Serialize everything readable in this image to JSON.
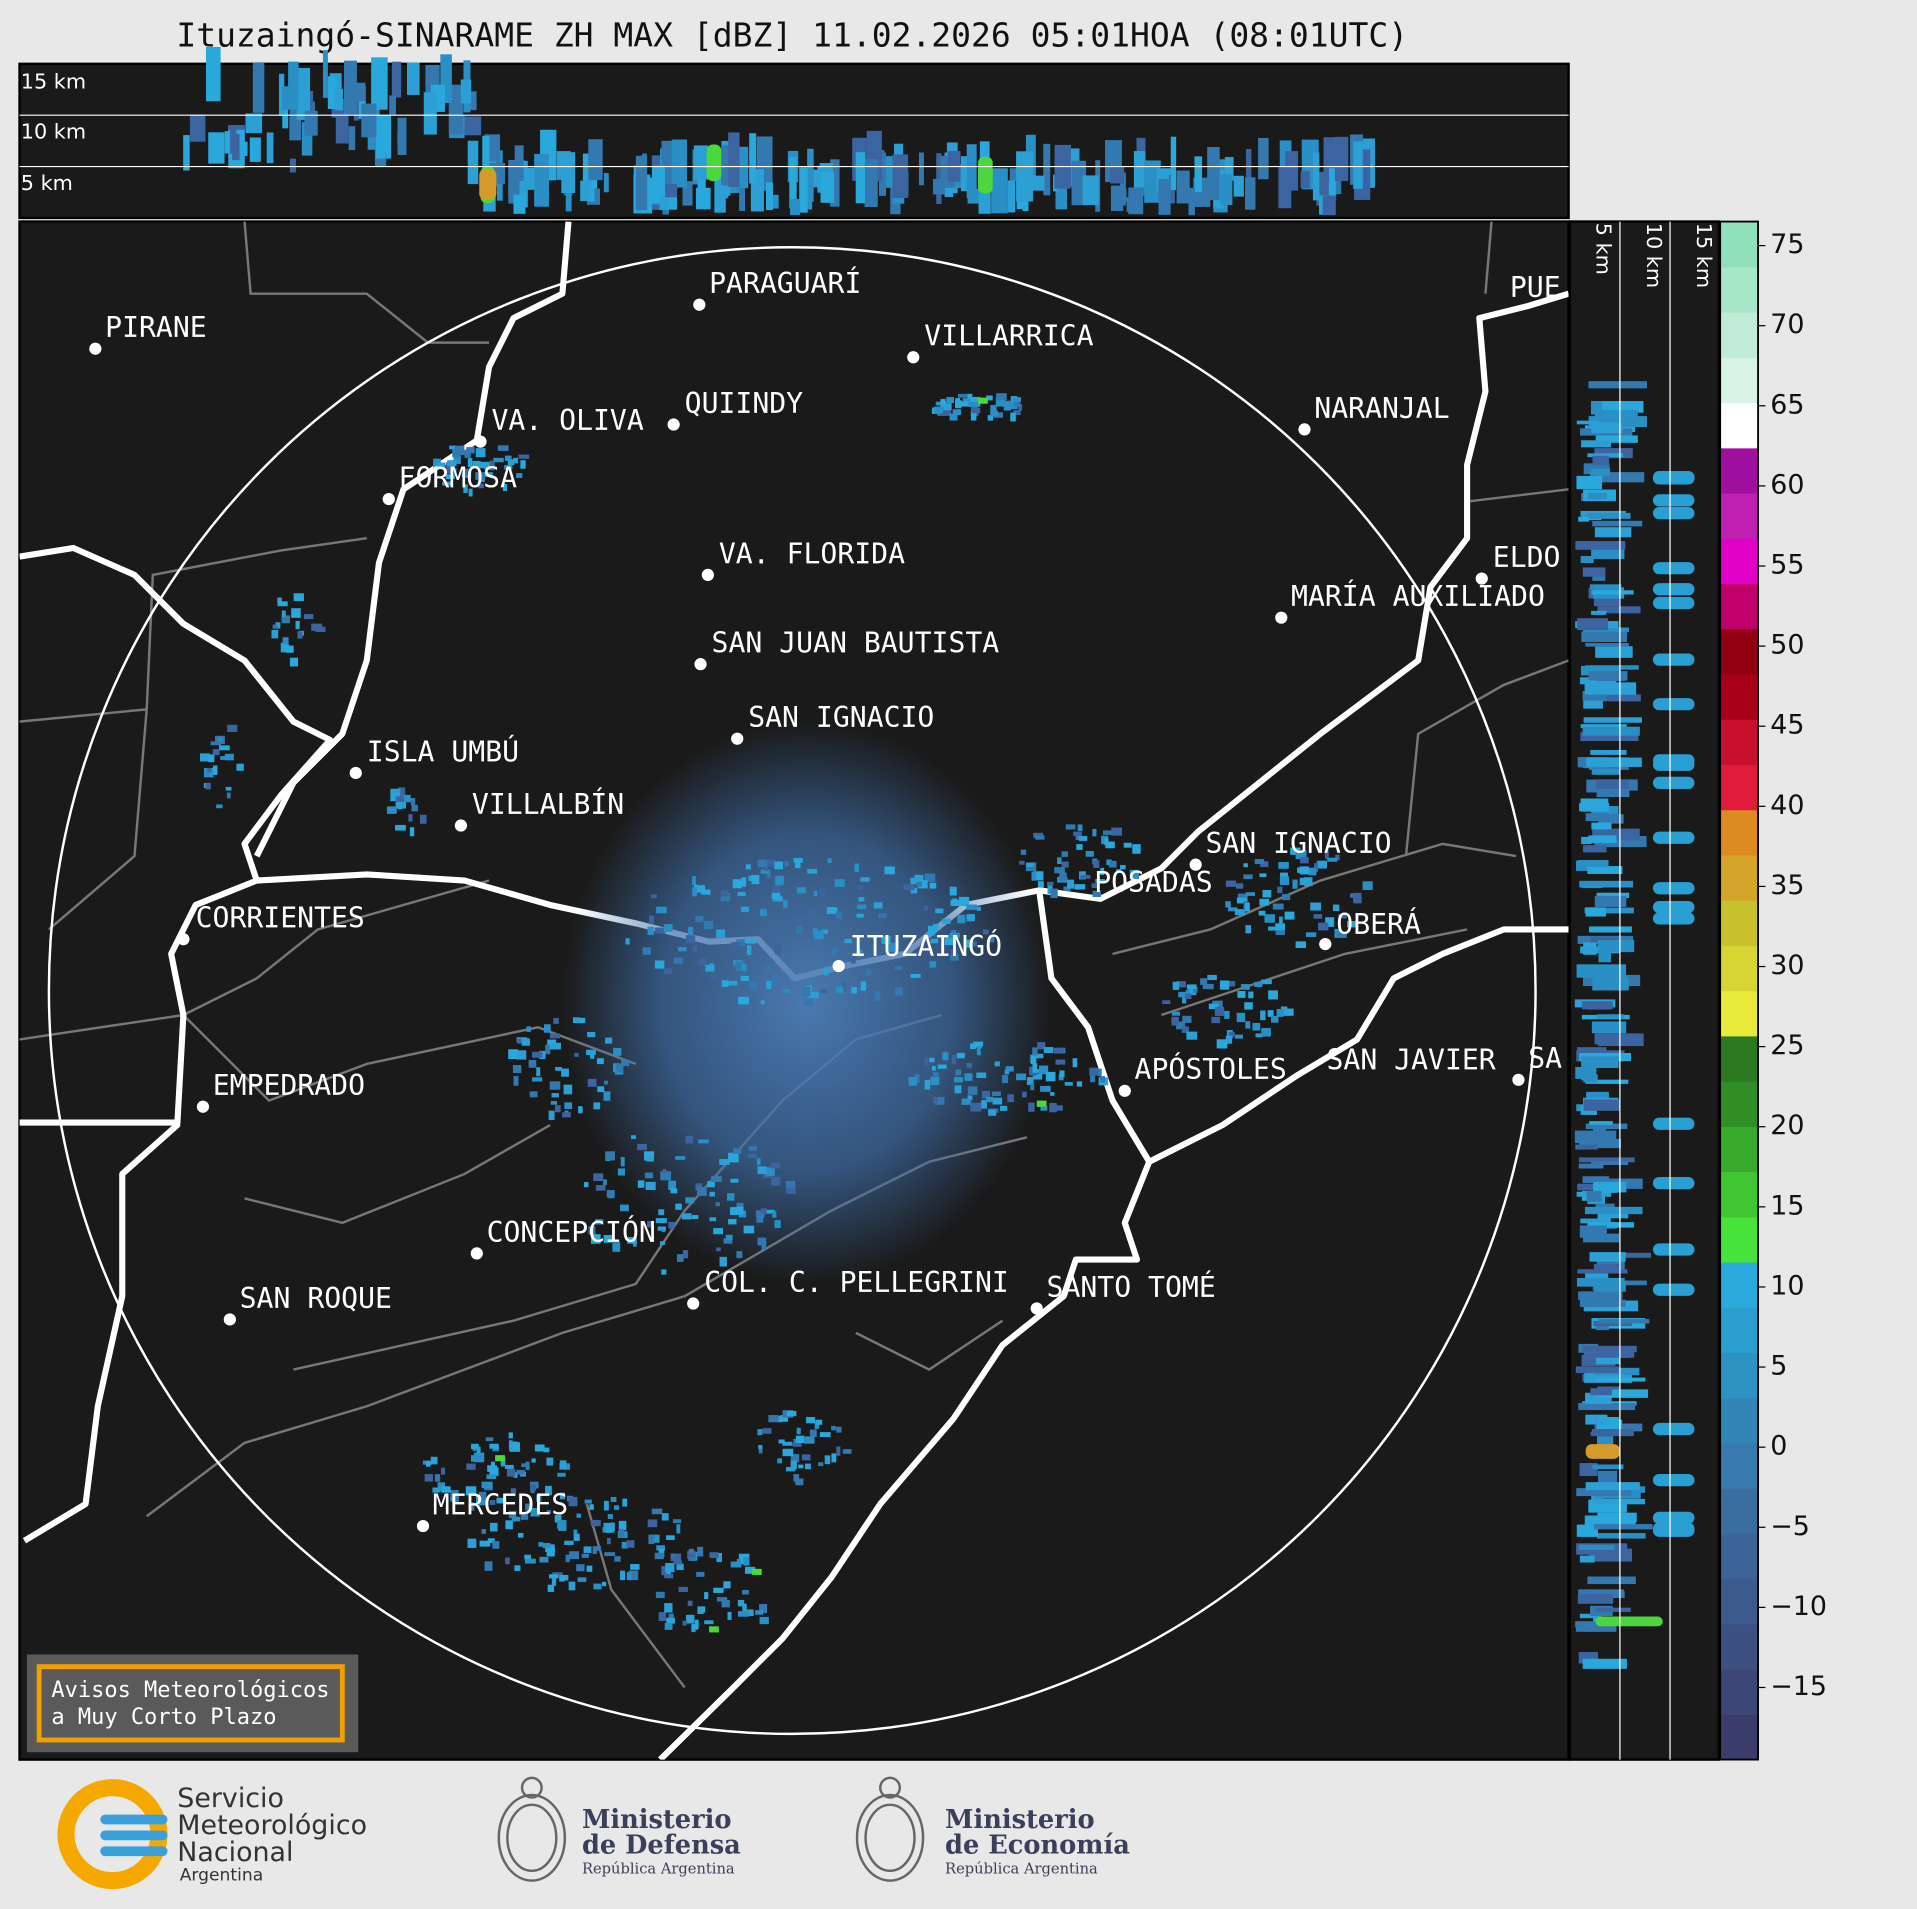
{
  "title": "Ituzaingó-SINARAME ZH MAX [dBZ] 11.02.2026 05:01HOA (08:01UTC)",
  "top_panel": {
    "height_labels": [
      "15 km",
      "10 km",
      "5 km"
    ]
  },
  "side_panel": {
    "height_labels": [
      "5 km",
      "10 km",
      "15 km"
    ]
  },
  "map": {
    "places": [
      "PARAGUARÍ",
      "VILLARRICA",
      "PIRANE",
      "VA. OLIVA",
      "QUIINDY",
      "NARANJAL",
      "FORMOSA",
      "VA. FLORIDA",
      "ELDO",
      "MARÍA AUXILIADO",
      "SAN JUAN BAUTISTA",
      "SAN IGNACIO",
      "ISLA UMBÚ",
      "VILLALBÍN",
      "SAN IGNACIO",
      "POSADAS",
      "CORRIENTES",
      "OBERÁ",
      "ITUZAINGÓ",
      "APÓSTOLES",
      "SAN JAVIER",
      "SA",
      "EMPEDRADO",
      "CONCEPCIÓN",
      "COL. C. PELLEGRINI",
      "SANTO TOMÉ",
      "SAN ROQUE",
      "MERCEDES",
      "PUE"
    ]
  },
  "notice": [
    "Avisos Meteorológicos",
    "a Muy Corto Plazo"
  ],
  "colorbar": {
    "ylim": [
      -19.5,
      76.5
    ],
    "yticks": [
      {
        "value": -15,
        "label": "−15"
      },
      {
        "value": -10,
        "label": "−10"
      },
      {
        "value": -5,
        "label": "−5"
      },
      0,
      5,
      10,
      15,
      20,
      25,
      30,
      35,
      40,
      45,
      50,
      55,
      60,
      65,
      70,
      75
    ],
    "colors": [
      "#3a3d6b",
      "#3c4677",
      "#3d5082",
      "#3d5a8c",
      "#3c6496",
      "#3a6ea0",
      "#377aab",
      "#3286b6",
      "#2d92c2",
      "#2a9ecf",
      "#2aaadc",
      "#47e23a",
      "#3fc632",
      "#37a92c",
      "#2f8f26",
      "#2b7a22",
      "#e8ea3a",
      "#d6d534",
      "#c8c22f",
      "#d4a52a",
      "#dc8a22",
      "#e01c3a",
      "#c8102e",
      "#a80018",
      "#900010",
      "#c0006a",
      "#e000c8",
      "#c020b0",
      "#a010a0",
      "#ffffff",
      "#d8f2e4",
      "#c0ecd6",
      "#a8e6c8",
      "#90e0ba"
    ]
  },
  "footer": {
    "smn": [
      "Servicio",
      "Meteorológico",
      "Nacional",
      "Argentina"
    ],
    "defensa": [
      "Ministerio",
      "de Defensa",
      "República Argentina"
    ],
    "economia": [
      "Ministerio",
      "de Economía",
      "República Argentina"
    ]
  }
}
